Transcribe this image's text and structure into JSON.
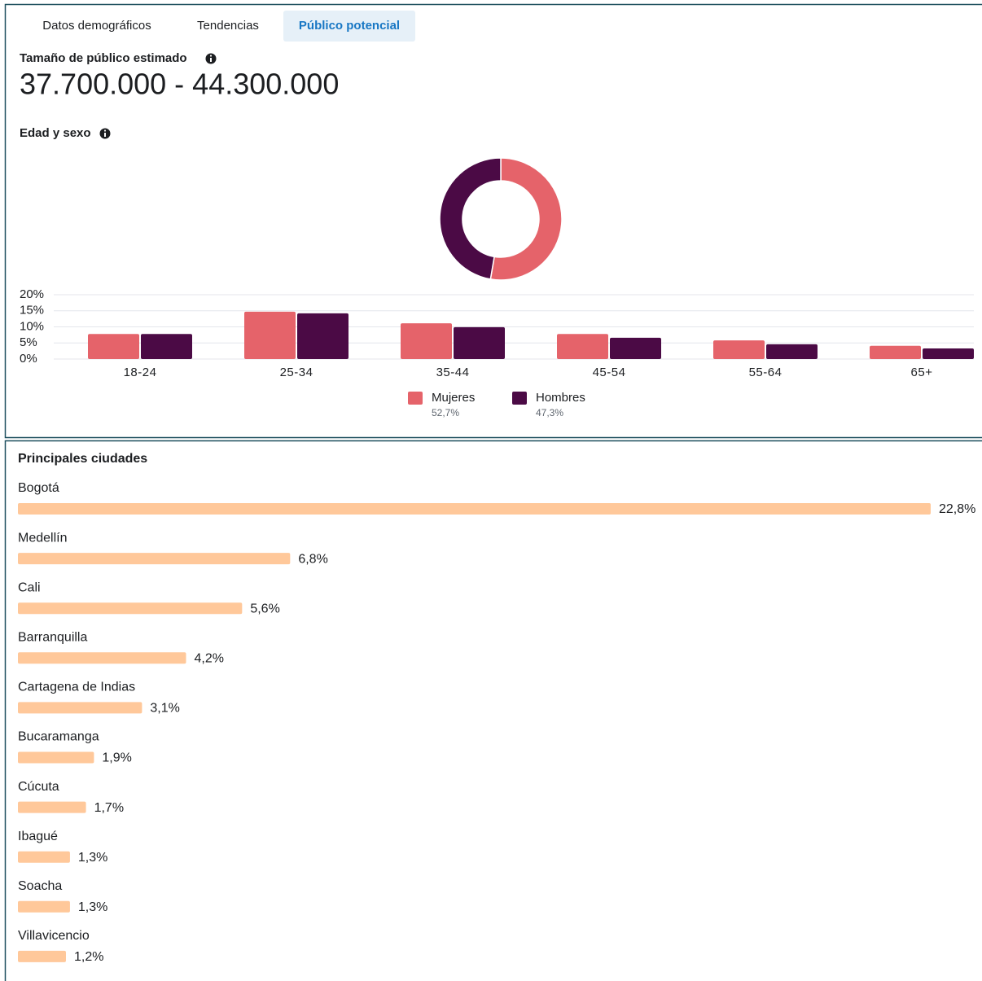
{
  "tabs": [
    "Datos demográficos",
    "Tendencias",
    "Público potencial"
  ],
  "active_tab": 2,
  "audience_size": {
    "title": "Tamaño de público estimado",
    "value": "37.700.000 - 44.300.000"
  },
  "chart_data": [
    {
      "type": "pie",
      "title": "Edad y sexo",
      "donut": true,
      "values": [
        52.7,
        47.3
      ],
      "value_labels": [
        "52,7%",
        "47,3%"
      ],
      "colors": [
        "#e5636a",
        "#4b0a45"
      ]
    },
    {
      "type": "bar",
      "categories": [
        "18-24",
        "25-34",
        "35-44",
        "45-54",
        "55-64",
        "65+"
      ],
      "series": [
        {
          "name": "Mujeres",
          "color": "#e5636a",
          "values": [
            7.8,
            14.7,
            11.1,
            7.8,
            5.8,
            4.1
          ]
        },
        {
          "name": "Hombres",
          "color": "#4b0a45",
          "values": [
            7.8,
            14.2,
            9.9,
            6.6,
            4.6,
            3.3
          ]
        }
      ],
      "ylim": [
        0,
        20
      ],
      "yticks": [
        {
          "value": 0,
          "label": "0%"
        },
        {
          "value": 5,
          "label": "5%"
        },
        {
          "value": 10,
          "label": "10%"
        },
        {
          "value": 15,
          "label": "15%"
        },
        {
          "value": 20,
          "label": "20%"
        }
      ],
      "grid": true,
      "legend": "bottom"
    },
    {
      "type": "hbar",
      "title": "Principales ciudades",
      "categories": [
        "Bogotá",
        "Medellín",
        "Cali",
        "Barranquilla",
        "Cartagena de Indias",
        "Bucaramanga",
        "Cúcuta",
        "Ibagué",
        "Soacha",
        "Villavicencio"
      ],
      "values": [
        22.8,
        6.8,
        5.6,
        4.2,
        3.1,
        1.9,
        1.7,
        1.3,
        1.3,
        1.2
      ],
      "value_labels": [
        "22,8%",
        "6,8%",
        "5,6%",
        "4,2%",
        "3,1%",
        "1,9%",
        "1,7%",
        "1,3%",
        "1,3%",
        "1,2%"
      ],
      "color": "#ffc89a"
    }
  ]
}
